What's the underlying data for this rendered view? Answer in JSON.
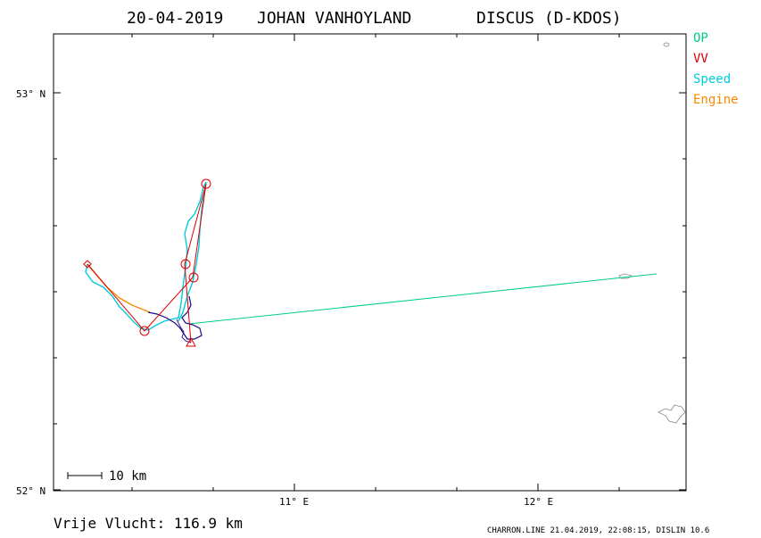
{
  "title": {
    "date": "20-04-2019",
    "pilot": "JOHAN VANHOYLAND",
    "glider": "DISCUS (D-KDOS)"
  },
  "axes": {
    "lat_labels": [
      {
        "value": 53.0,
        "label": "53° N"
      },
      {
        "value": 52.0,
        "label": "52° N"
      }
    ],
    "lon_labels": [
      {
        "value": 11.0,
        "label": "11° E"
      },
      {
        "value": 12.0,
        "label": "12° E"
      }
    ]
  },
  "legend": [
    {
      "label": "OP",
      "color": "#00cc88"
    },
    {
      "label": "VV",
      "color": "#dd0000"
    },
    {
      "label": "Speed",
      "color": "#00ccdd"
    },
    {
      "label": "Engine",
      "color": "#ff8800"
    }
  ],
  "scale_bar": {
    "label": "10 km"
  },
  "footer": {
    "distance": "Vrije Vlucht:  116.9 km",
    "credits": "CHARRON.LINE 21.04.2019, 22:08:15, DISLIN 10.6"
  },
  "colors": {
    "op": "#00cc88",
    "vv": "#dd0000",
    "speed": "#00ccdd",
    "engine": "#ff8800",
    "climb": "#1a0a7a",
    "frame": "#000000"
  }
}
